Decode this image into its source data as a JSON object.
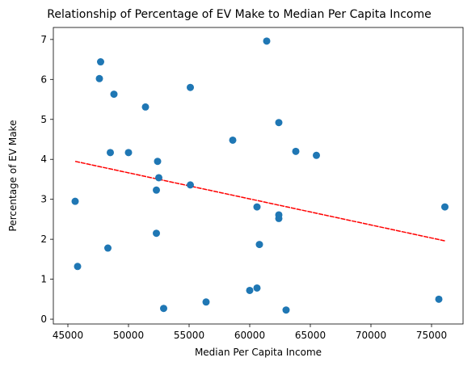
{
  "chart_data": {
    "type": "scatter",
    "title": "Relationship of Percentage of EV Make to Median Per Capita Income",
    "xlabel": "Median Per Capita Income",
    "ylabel": "Percentage of EV Make",
    "xlim": [
      43800,
      77600
    ],
    "ylim": [
      -0.12,
      7.3
    ],
    "xticks": [
      45000,
      50000,
      55000,
      60000,
      65000,
      70000,
      75000
    ],
    "yticks": [
      0,
      1,
      2,
      3,
      4,
      5,
      6,
      7
    ],
    "grid": false,
    "colors": {
      "points": "#1f77b4",
      "regression": "#ff0000"
    },
    "points": [
      {
        "x": 45600,
        "y": 2.95
      },
      {
        "x": 45800,
        "y": 1.32
      },
      {
        "x": 47600,
        "y": 6.02
      },
      {
        "x": 47700,
        "y": 6.44
      },
      {
        "x": 48300,
        "y": 1.78
      },
      {
        "x": 48500,
        "y": 4.17
      },
      {
        "x": 48800,
        "y": 5.63
      },
      {
        "x": 50000,
        "y": 4.17
      },
      {
        "x": 51400,
        "y": 5.31
      },
      {
        "x": 52300,
        "y": 3.23
      },
      {
        "x": 52300,
        "y": 2.15
      },
      {
        "x": 52400,
        "y": 3.95
      },
      {
        "x": 52500,
        "y": 3.54
      },
      {
        "x": 52900,
        "y": 0.27
      },
      {
        "x": 55100,
        "y": 3.36
      },
      {
        "x": 55100,
        "y": 5.8
      },
      {
        "x": 56400,
        "y": 0.43
      },
      {
        "x": 58600,
        "y": 4.48
      },
      {
        "x": 60000,
        "y": 0.72
      },
      {
        "x": 60600,
        "y": 0.78
      },
      {
        "x": 60600,
        "y": 2.81
      },
      {
        "x": 60800,
        "y": 1.87
      },
      {
        "x": 61400,
        "y": 6.96
      },
      {
        "x": 62400,
        "y": 4.92
      },
      {
        "x": 62400,
        "y": 2.61
      },
      {
        "x": 62400,
        "y": 2.52
      },
      {
        "x": 63000,
        "y": 0.23
      },
      {
        "x": 63800,
        "y": 4.2
      },
      {
        "x": 65500,
        "y": 4.1
      },
      {
        "x": 75600,
        "y": 0.5
      },
      {
        "x": 76100,
        "y": 2.81
      }
    ],
    "regression": {
      "x": [
        45600,
        76100
      ],
      "y": [
        3.95,
        1.96
      ]
    }
  }
}
